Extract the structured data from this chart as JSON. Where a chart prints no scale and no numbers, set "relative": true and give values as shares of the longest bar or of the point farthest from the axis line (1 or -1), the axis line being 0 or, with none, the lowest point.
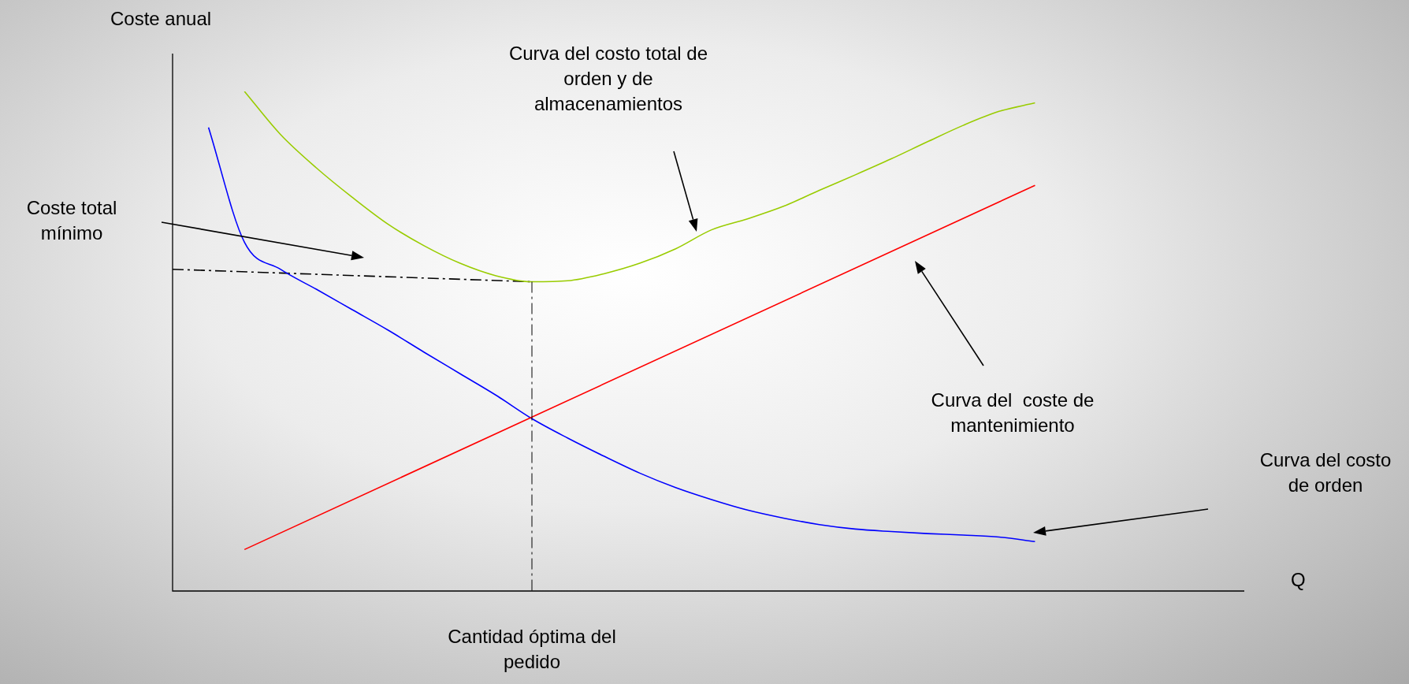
{
  "chart_data": {
    "type": "line",
    "relative": true,
    "xlabel": "Q",
    "ylabel": "Coste anual",
    "legend": false,
    "marker": "none",
    "categories": [
      null,
      null,
      null,
      null,
      null,
      null,
      null,
      null,
      null,
      null,
      null,
      null,
      null,
      null,
      null,
      null,
      null,
      null,
      null,
      null,
      null,
      null,
      null,
      null,
      null,
      null,
      null,
      null,
      null,
      null,
      null
    ],
    "series": [
      {
        "color": "#99cc00",
        "values": [
          null,
          null,
          1,
          0.914,
          0.847,
          0.788,
          0.734,
          0.691,
          0.656,
          0.631,
          0.619,
          0.621,
          0.635,
          0.656,
          0.685,
          0.723,
          0.745,
          0.77,
          0.802,
          0.833,
          0.865,
          0.899,
          0.932,
          0.96,
          0.977,
          null,
          null,
          null,
          null,
          null,
          null
        ]
      },
      {
        "color": "#ff0000",
        "values": [
          null,
          null,
          0.083,
          null,
          null,
          null,
          null,
          null,
          null,
          null,
          null,
          null,
          null,
          null,
          null,
          null,
          null,
          null,
          null,
          null,
          null,
          null,
          null,
          null,
          0.812,
          null,
          null,
          null,
          null,
          null,
          null
        ]
      },
      {
        "color": "#0000ff",
        "values": [
          null,
          0.928,
          0.698,
          0.644,
          0.604,
          0.563,
          0.522,
          0.478,
          0.435,
          0.392,
          0.345,
          0.306,
          0.27,
          0.236,
          0.207,
          0.183,
          0.162,
          0.146,
          0.133,
          0.124,
          0.119,
          0.115,
          0.112,
          0.108,
          0.099,
          null,
          null,
          null,
          null,
          null,
          null
        ]
      },
      {
        "color": "#000000",
        "line_style": "dashed",
        "values": [
          0.644,
          null,
          null,
          null,
          null,
          null,
          null,
          null,
          null,
          null,
          0.619,
          null,
          null,
          null,
          null,
          null,
          null,
          null,
          null,
          null,
          null,
          null,
          null,
          null,
          null,
          null,
          null,
          null,
          null,
          null,
          null
        ]
      }
    ],
    "annotations": [
      "Coste total mínimo",
      "Cantidad óptima del pedido",
      "Curva del costo total de orden y de almacenamientos",
      "Curva del  coste de mantenimiento",
      "Curva del costo de orden"
    ]
  }
}
